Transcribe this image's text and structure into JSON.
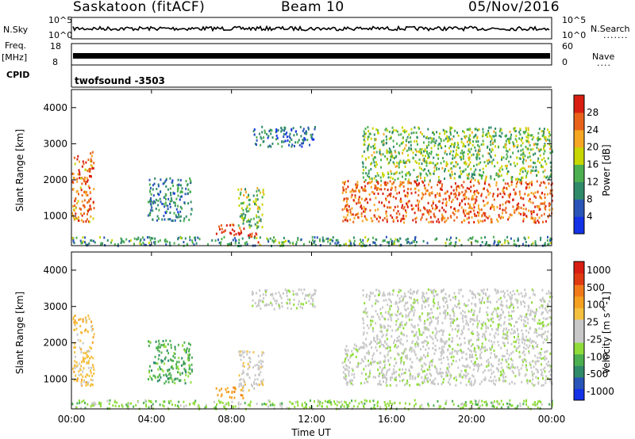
{
  "header": {
    "station": "Saskatoon (fitACF)",
    "beam": "Beam 10",
    "date": "05/Nov/2016"
  },
  "top_panels": {
    "nsky_label": "N.Sky",
    "nsky_ticks": [
      "10^5",
      "10^0"
    ],
    "nsearch_label": "N.Search",
    "nsearch_ticks": [
      "10^5",
      "10^0"
    ],
    "freq_label": "Freq.",
    "freq_unit": "[MHz]",
    "freq_ticks": [
      "18",
      "8"
    ],
    "nave_label": "Nave",
    "nave_ticks": [
      "60",
      "0"
    ],
    "cpid_label": "CPID",
    "cpid_text": "twofsound -3503"
  },
  "chart_data": [
    {
      "type": "heatmap",
      "title": "",
      "xlabel": "Time UT",
      "ylabel": "Slant Range [km]",
      "x_ticks": [
        "00:00",
        "04:00",
        "08:00",
        "12:00",
        "16:00",
        "20:00",
        "00:00"
      ],
      "y_ticks": [
        1000,
        2000,
        3000,
        4000
      ],
      "xlim_hours": [
        0,
        24
      ],
      "ylim_km": [
        180,
        4500
      ],
      "colorbar": {
        "label": "Power [dB]",
        "ticks": [
          4,
          8,
          12,
          16,
          20,
          24,
          28
        ],
        "range": [
          0,
          30
        ],
        "colors": [
          "#1432e6",
          "#2a55b8",
          "#2f8a6a",
          "#4caf50",
          "#c8d600",
          "#f5a623",
          "#e8621a",
          "#d81e10"
        ]
      },
      "regions": [
        {
          "t0": 0.0,
          "t1": 1.1,
          "r0": 850,
          "r1": 2800,
          "level": 24
        },
        {
          "t0": 3.8,
          "t1": 6.0,
          "r0": 900,
          "r1": 2100,
          "level": 8
        },
        {
          "t0": 7.2,
          "t1": 8.6,
          "r0": 500,
          "r1": 800,
          "level": 27
        },
        {
          "t0": 8.3,
          "t1": 9.6,
          "r0": 700,
          "r1": 1800,
          "level": 14
        },
        {
          "t0": 8.8,
          "t1": 9.4,
          "r0": 250,
          "r1": 550,
          "level": 27
        },
        {
          "t0": 9.0,
          "t1": 12.2,
          "r0": 2950,
          "r1": 3500,
          "level": 6
        },
        {
          "t0": 13.5,
          "t1": 24.0,
          "r0": 850,
          "r1": 2000,
          "level": 26
        },
        {
          "t0": 14.5,
          "t1": 24.0,
          "r0": 2000,
          "r1": 3500,
          "level": 14
        },
        {
          "t0": 0.0,
          "t1": 24.0,
          "r0": 200,
          "r1": 450,
          "level": 10
        }
      ]
    },
    {
      "type": "heatmap",
      "title": "",
      "xlabel": "Time UT",
      "ylabel": "Slant Range [km]",
      "x_ticks": [
        "00:00",
        "04:00",
        "08:00",
        "12:00",
        "16:00",
        "20:00",
        "00:00"
      ],
      "y_ticks": [
        1000,
        2000,
        3000,
        4000
      ],
      "xlim_hours": [
        0,
        24
      ],
      "ylim_km": [
        180,
        4500
      ],
      "colorbar": {
        "label": "Velocity [m s^-1]",
        "ticks": [
          "1000",
          "500",
          "100",
          "25",
          "-25",
          "-100",
          "-500",
          "-1000"
        ],
        "colors": [
          "#1432e6",
          "#2a55b8",
          "#2f8a6a",
          "#4caf50",
          "#8fdc3a",
          "#c8c8c8",
          "#c8c8c8",
          "#f5c040",
          "#f5a020",
          "#f07a1a",
          "#e03a12",
          "#d81e10"
        ]
      },
      "regions": [
        {
          "t0": 0.0,
          "t1": 1.1,
          "r0": 850,
          "r1": 2800,
          "level": 7
        },
        {
          "t0": 3.8,
          "t1": 6.0,
          "r0": 900,
          "r1": 2100,
          "level": 3
        },
        {
          "t0": 7.2,
          "t1": 8.6,
          "r0": 500,
          "r1": 800,
          "level": 8
        },
        {
          "t0": 8.3,
          "t1": 9.6,
          "r0": 700,
          "r1": 1800,
          "level": 6
        },
        {
          "t0": 9.0,
          "t1": 12.2,
          "r0": 2950,
          "r1": 3500,
          "level": 5
        },
        {
          "t0": 13.5,
          "t1": 24.0,
          "r0": 850,
          "r1": 2000,
          "level": 5
        },
        {
          "t0": 14.5,
          "t1": 24.0,
          "r0": 2000,
          "r1": 3500,
          "level": 5
        },
        {
          "t0": 0.0,
          "t1": 24.0,
          "r0": 200,
          "r1": 450,
          "level": 4
        }
      ]
    }
  ]
}
